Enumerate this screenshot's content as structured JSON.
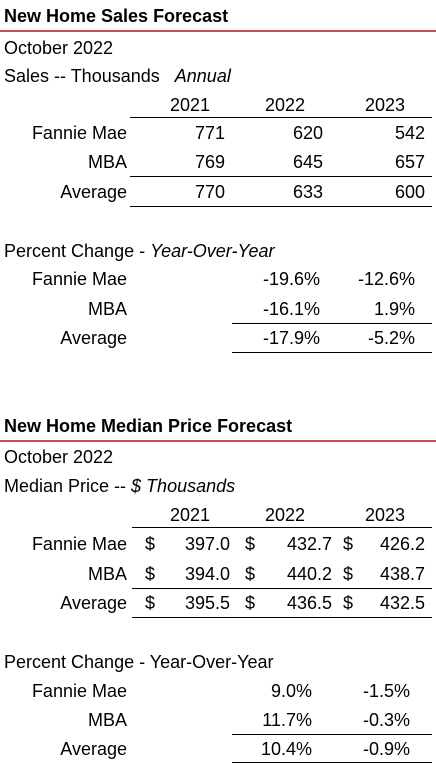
{
  "sales": {
    "title": "New Home Sales Forecast",
    "date": "October 2022",
    "units_label": "Sales -- Thousands",
    "units_suffix": "Annual",
    "years": [
      "2021",
      "2022",
      "2023"
    ],
    "rows": [
      {
        "label": "Fannie Mae",
        "values": [
          "771",
          "620",
          "542"
        ]
      },
      {
        "label": "MBA",
        "values": [
          "769",
          "645",
          "657"
        ]
      },
      {
        "label": "Average",
        "values": [
          "770",
          "633",
          "600"
        ]
      }
    ],
    "pct_label": "Percent Change - ",
    "pct_suffix": "Year-Over-Year",
    "pct_rows": [
      {
        "label": "Fannie Mae",
        "values": [
          "-19.6%",
          "-12.6%"
        ]
      },
      {
        "label": "MBA",
        "values": [
          "-16.1%",
          "1.9%"
        ]
      },
      {
        "label": "Average",
        "values": [
          "-17.9%",
          "-5.2%"
        ]
      }
    ]
  },
  "price": {
    "title": "New Home Median Price Forecast",
    "date": "October 2022",
    "units_label": "Median Price -- ",
    "units_suffix": "$ Thousands",
    "years": [
      "2021",
      "2022",
      "2023"
    ],
    "currency": "$",
    "rows": [
      {
        "label": "Fannie Mae",
        "values": [
          "397.0",
          "432.7",
          "426.2"
        ]
      },
      {
        "label": "MBA",
        "values": [
          "394.0",
          "440.2",
          "438.7"
        ]
      },
      {
        "label": "Average",
        "values": [
          "395.5",
          "436.5",
          "432.5"
        ]
      }
    ],
    "pct_label": "Percent Change - Year-Over-Year",
    "pct_rows": [
      {
        "label": "Fannie Mae",
        "values": [
          "9.0%",
          "-1.5%"
        ]
      },
      {
        "label": "MBA",
        "values": [
          "11.7%",
          "-0.3%"
        ]
      },
      {
        "label": "Average",
        "values": [
          "10.4%",
          "-0.9%"
        ]
      }
    ]
  }
}
